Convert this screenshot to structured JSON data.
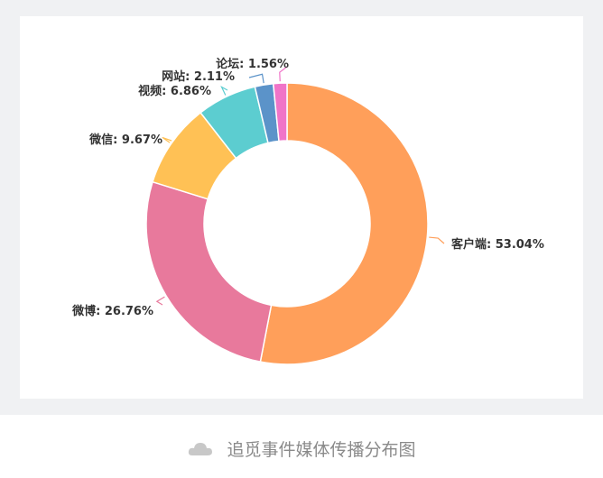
{
  "chart_data": {
    "type": "pie",
    "donut": true,
    "start_angle_deg": 0,
    "direction": "clockwise",
    "legend": "none",
    "slices": [
      {
        "name": "客户端",
        "value": 53.04,
        "label": "客户端: 53.04%",
        "color": "#ff9f5a",
        "label_side": "right"
      },
      {
        "name": "微博",
        "value": 26.76,
        "label": "微博: 26.76%",
        "color": "#e8799c",
        "label_side": "left"
      },
      {
        "name": "微信",
        "value": 9.67,
        "label": "微信: 9.67%",
        "color": "#ffc155",
        "label_side": "left"
      },
      {
        "name": "视频",
        "value": 6.86,
        "label": "视频: 6.86%",
        "color": "#5ccdd0",
        "label_side": "left"
      },
      {
        "name": "网站",
        "value": 2.11,
        "label": "网站: 2.11%",
        "color": "#5b93c9",
        "label_side": "left"
      },
      {
        "name": "论坛",
        "value": 1.56,
        "label": "论坛: 1.56%",
        "color": "#f074c8",
        "label_side": "left"
      }
    ]
  },
  "caption": {
    "text": "追觅事件媒体传播分布图",
    "icon": "cloud-icon"
  }
}
